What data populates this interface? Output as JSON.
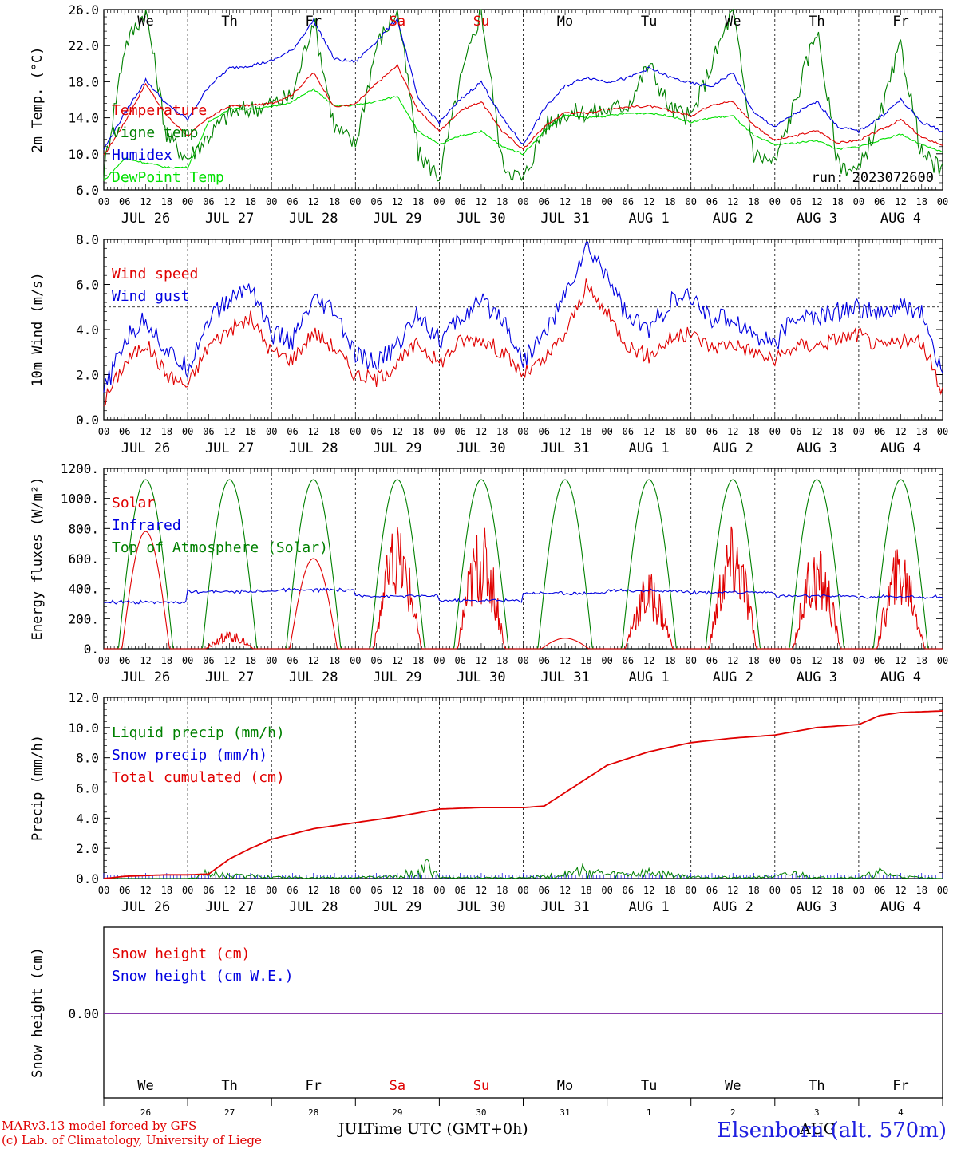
{
  "run_label": "run: 2023072600",
  "credits": {
    "line1": "MARv3.13 model forced by GFS",
    "line2": "(c) Lab. of Climatology, University of Liege"
  },
  "station": "Elsenborn (alt. 570m)",
  "bottom_axis": {
    "title": "Time UTC (GMT+0h)",
    "month_left": "JUL",
    "month_right": "AUG",
    "day_numbers": [
      "26",
      "27",
      "28",
      "29",
      "30",
      "31",
      "1",
      "2",
      "3",
      "4"
    ]
  },
  "weekdays": [
    "We",
    "Th",
    "Fr",
    "Sa",
    "Su",
    "Mo",
    "Tu",
    "We",
    "Th",
    "Fr"
  ],
  "weekday_colors": [
    "#000000",
    "#000000",
    "#000000",
    "#e00000",
    "#e00000",
    "#000000",
    "#000000",
    "#000000",
    "#000000",
    "#000000"
  ],
  "hour_labels": [
    "00",
    "06",
    "12",
    "18"
  ],
  "final_hour_label": "00",
  "date_labels": [
    "JUL 26",
    "JUL 27",
    "JUL 28",
    "JUL 29",
    "JUL 30",
    "JUL 31",
    "AUG  1",
    "AUG  2",
    "AUG  3",
    "AUG  4"
  ],
  "chart_data": [
    {
      "type": "line",
      "ylabel": "2m Temp. (°C)",
      "ylim": [
        6.0,
        26.0
      ],
      "yticks": [
        "6.0",
        "10.0",
        "14.0",
        "18.0",
        "22.0",
        "26.0"
      ],
      "x_unit": "hours since 2023-07-26 00 UTC",
      "series": [
        {
          "name": "Temperature",
          "color": "#e00000",
          "x": [
            0,
            6,
            12,
            18,
            24,
            30,
            36,
            42,
            48,
            54,
            60,
            66,
            72,
            78,
            84,
            90,
            96,
            102,
            108,
            114,
            120,
            126,
            132,
            138,
            144,
            150,
            156,
            162,
            168,
            174,
            180,
            186,
            192,
            198,
            204,
            210,
            216,
            222,
            228,
            234,
            240
          ],
          "y": [
            9.8,
            13.5,
            17.8,
            14.2,
            12.0,
            14.0,
            15.3,
            15.4,
            15.6,
            16.6,
            19.0,
            15.2,
            15.5,
            17.8,
            19.8,
            14.8,
            12.5,
            14.8,
            15.8,
            12.5,
            10.5,
            13.0,
            14.6,
            14.5,
            15.0,
            15.2,
            15.3,
            14.8,
            14.2,
            15.5,
            15.8,
            13.2,
            11.5,
            12.0,
            12.6,
            11.2,
            11.5,
            12.6,
            13.8,
            11.8,
            11.0
          ]
        },
        {
          "name": "Vigne temp",
          "color": "#008000",
          "x": [
            0,
            6,
            12,
            18,
            24,
            30,
            36,
            42,
            48,
            54,
            60,
            66,
            72,
            78,
            84,
            90,
            96,
            102,
            108,
            114,
            120,
            126,
            132,
            138,
            144,
            150,
            156,
            162,
            168,
            174,
            180,
            186,
            192,
            198,
            204,
            210,
            216,
            222,
            228,
            234,
            240
          ],
          "y": [
            8.0,
            22.0,
            26.0,
            12.0,
            9.5,
            12.0,
            14.5,
            15.0,
            15.5,
            16.5,
            25.0,
            13.0,
            11.0,
            22.0,
            26.0,
            10.0,
            7.5,
            18.0,
            26.0,
            9.0,
            7.0,
            13.0,
            14.5,
            14.6,
            14.8,
            15.5,
            20.0,
            15.0,
            14.0,
            20.0,
            26.0,
            10.0,
            9.0,
            16.0,
            24.0,
            9.0,
            8.0,
            14.0,
            22.0,
            10.0,
            8.0
          ]
        },
        {
          "name": "Humidex",
          "color": "#0000e0",
          "x": [
            0,
            6,
            12,
            18,
            24,
            30,
            36,
            42,
            48,
            54,
            60,
            66,
            72,
            78,
            84,
            90,
            96,
            102,
            108,
            114,
            120,
            126,
            132,
            138,
            144,
            150,
            156,
            162,
            168,
            174,
            180,
            186,
            192,
            198,
            204,
            210,
            216,
            222,
            228,
            234,
            240
          ],
          "y": [
            10.5,
            14.5,
            18.2,
            15.5,
            13.8,
            17.5,
            19.5,
            19.8,
            20.3,
            21.5,
            24.8,
            20.5,
            20.2,
            22.5,
            25.0,
            16.0,
            13.5,
            16.0,
            18.0,
            14.0,
            11.0,
            15.0,
            17.5,
            18.5,
            18.0,
            18.4,
            19.5,
            18.5,
            17.8,
            17.5,
            19.0,
            14.5,
            13.0,
            14.5,
            15.8,
            13.0,
            12.5,
            14.0,
            16.0,
            13.5,
            12.5
          ]
        },
        {
          "name": "DewPoint Temp",
          "color": "#00e000",
          "x": [
            0,
            6,
            12,
            18,
            24,
            30,
            36,
            42,
            48,
            54,
            60,
            66,
            72,
            78,
            84,
            90,
            96,
            102,
            108,
            114,
            120,
            126,
            132,
            138,
            144,
            150,
            156,
            162,
            168,
            174,
            180,
            186,
            192,
            198,
            204,
            210,
            216,
            222,
            228,
            234,
            240
          ],
          "y": [
            7.0,
            9.5,
            9.0,
            8.5,
            8.5,
            13.5,
            15.0,
            15.0,
            15.2,
            15.8,
            17.2,
            15.3,
            15.4,
            15.8,
            16.4,
            12.5,
            11.0,
            12.0,
            12.5,
            10.8,
            10.0,
            12.5,
            14.3,
            14.0,
            14.2,
            14.5,
            14.5,
            14.2,
            13.5,
            14.0,
            14.2,
            12.0,
            11.0,
            11.2,
            11.5,
            10.5,
            10.8,
            11.5,
            12.2,
            11.0,
            10.2
          ]
        }
      ]
    },
    {
      "type": "line",
      "ylabel": "10m Wind (m/s)",
      "ylim": [
        0.0,
        8.0
      ],
      "yticks": [
        "0.0",
        "2.0",
        "4.0",
        "6.0",
        "8.0"
      ],
      "reference_line": 5.0,
      "series": [
        {
          "name": "Wind speed",
          "color": "#e00000",
          "x": [
            0,
            6,
            12,
            18,
            24,
            30,
            36,
            42,
            48,
            54,
            60,
            66,
            72,
            78,
            84,
            90,
            96,
            102,
            108,
            114,
            120,
            126,
            132,
            138,
            144,
            150,
            156,
            162,
            168,
            174,
            180,
            186,
            192,
            198,
            204,
            210,
            216,
            222,
            228,
            234,
            240
          ],
          "y": [
            0.8,
            2.5,
            3.4,
            2.0,
            1.5,
            3.3,
            4.0,
            4.5,
            3.0,
            2.7,
            3.9,
            3.2,
            2.0,
            1.8,
            2.5,
            3.4,
            2.5,
            3.5,
            3.6,
            3.0,
            2.0,
            2.6,
            3.8,
            5.9,
            4.7,
            3.3,
            2.8,
            3.6,
            3.8,
            3.2,
            3.4,
            3.0,
            2.6,
            3.3,
            3.3,
            3.6,
            3.8,
            3.2,
            3.5,
            3.4,
            1.3
          ]
        },
        {
          "name": "Wind gust",
          "color": "#0000e0",
          "x": [
            0,
            6,
            12,
            18,
            24,
            30,
            36,
            42,
            48,
            54,
            60,
            66,
            72,
            78,
            84,
            90,
            96,
            102,
            108,
            114,
            120,
            126,
            132,
            138,
            144,
            150,
            156,
            162,
            168,
            174,
            180,
            186,
            192,
            198,
            204,
            210,
            216,
            222,
            228,
            234,
            240
          ],
          "y": [
            1.2,
            3.5,
            4.5,
            3.0,
            2.3,
            4.5,
            5.3,
            6.0,
            3.8,
            3.5,
            5.2,
            4.8,
            2.8,
            2.5,
            3.3,
            4.8,
            3.5,
            4.5,
            5.2,
            4.6,
            2.6,
            3.8,
            5.5,
            7.6,
            6.5,
            4.5,
            4.0,
            5.2,
            5.4,
            4.5,
            4.5,
            3.8,
            3.4,
            4.6,
            4.5,
            4.8,
            5.0,
            4.6,
            5.0,
            4.8,
            1.8
          ]
        }
      ]
    },
    {
      "type": "line",
      "ylabel": "Energy fluxes (W/m²)",
      "ylim": [
        0,
        1200
      ],
      "yticks": [
        "0.",
        "200.",
        "400.",
        "600.",
        "800.",
        "1000.",
        "1200."
      ],
      "series": [
        {
          "name": "Solar",
          "color": "#e00000",
          "daily_peaks": [
            780,
            120,
            600,
            820,
            840,
            70,
            520,
            830,
            690,
            700
          ]
        },
        {
          "name": "Infrared",
          "color": "#0000e0",
          "daily_levels": [
            310,
            380,
            390,
            350,
            320,
            370,
            385,
            375,
            350,
            345
          ]
        },
        {
          "name": "Top of Atmosphere (Solar)",
          "color": "#008000",
          "daily_peak": 1125,
          "sunrise_hour": 4.2,
          "sunset_hour": 19.8
        }
      ]
    },
    {
      "type": "line",
      "ylabel": "Precip (mm/h)",
      "ylim": [
        0.0,
        12.0
      ],
      "yticks": [
        "0.0",
        "2.0",
        "4.0",
        "6.0",
        "8.0",
        "10.0",
        "12.0"
      ],
      "series": [
        {
          "name": "Liquid precip (mm/h)",
          "color": "#008000",
          "x": [
            0,
            24,
            30,
            36,
            48,
            60,
            72,
            84,
            94,
            96,
            120,
            132,
            138,
            144,
            156,
            168,
            180,
            192,
            198,
            204,
            216,
            222,
            228,
            240
          ],
          "y": [
            0,
            0,
            0.6,
            0.3,
            0.2,
            0.1,
            0.1,
            0.2,
            1.3,
            0.1,
            0.1,
            0.4,
            0.9,
            0.4,
            0.6,
            0.2,
            0.1,
            0.2,
            0.5,
            0.1,
            0.1,
            0.6,
            0.2,
            0
          ]
        },
        {
          "name": "Snow precip (mm/h)",
          "color": "#0000e0",
          "x": [
            0,
            240
          ],
          "y": [
            0,
            0
          ]
        },
        {
          "name": "Total cumulated (cm)",
          "color": "#e00000",
          "x": [
            0,
            6,
            12,
            18,
            24,
            30,
            36,
            42,
            48,
            60,
            72,
            84,
            96,
            108,
            120,
            126,
            132,
            138,
            144,
            156,
            168,
            180,
            192,
            204,
            216,
            222,
            228,
            240
          ],
          "y": [
            0,
            0.15,
            0.2,
            0.25,
            0.25,
            0.3,
            1.3,
            2.0,
            2.6,
            3.3,
            3.7,
            4.1,
            4.6,
            4.7,
            4.7,
            4.8,
            5.7,
            6.6,
            7.5,
            8.4,
            9.0,
            9.3,
            9.5,
            10.0,
            10.2,
            10.8,
            11.0,
            11.1
          ]
        }
      ]
    },
    {
      "type": "line",
      "ylabel": "Snow height (cm)",
      "ytick": "0.00",
      "series": [
        {
          "name": "Snow height (cm)",
          "color": "#e00000",
          "x": [
            0,
            240
          ],
          "y": [
            0,
            0
          ]
        },
        {
          "name": "Snow height (cm W.E.)",
          "color": "#0000e0",
          "x": [
            0,
            240
          ],
          "y": [
            0,
            0
          ]
        }
      ]
    }
  ]
}
